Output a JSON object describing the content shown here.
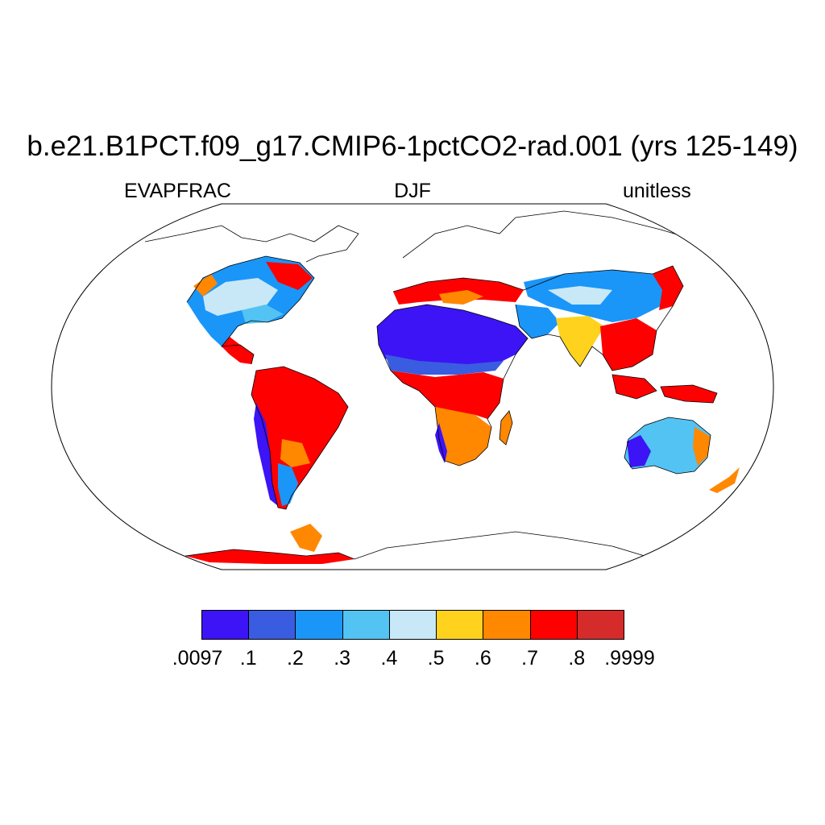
{
  "title": "b.e21.B1PCT.f09_g17.CMIP6-1pctCO2-rad.001 (yrs 125-149)",
  "variable": "EVAPFRAC",
  "season": "DJF",
  "units": "unitless",
  "colorbar": {
    "colors": [
      "#3c14f5",
      "#3a5ce0",
      "#1a96f8",
      "#52c3f3",
      "#c8e8f8",
      "#ffd21e",
      "#ff8800",
      "#ff0000",
      "#d62b2b"
    ],
    "labels": [
      ".0097",
      ".1",
      ".2",
      ".3",
      ".4",
      ".5",
      ".6",
      ".7",
      ".8",
      ".9999"
    ]
  },
  "map": {
    "projection": "robinson",
    "ocean_color": "#ffffff",
    "coastline_color": "#000000"
  }
}
